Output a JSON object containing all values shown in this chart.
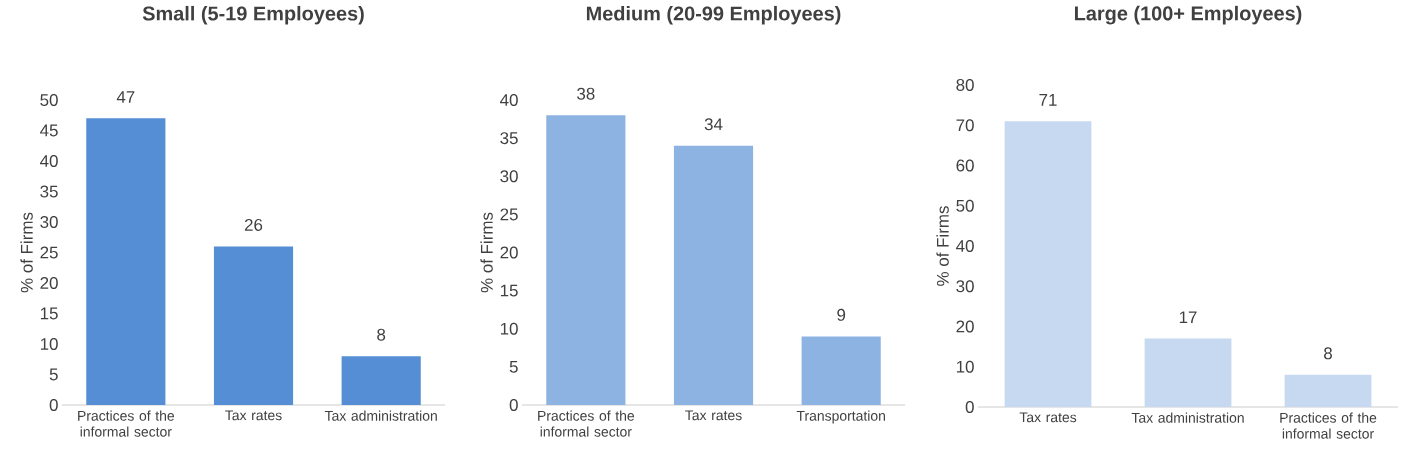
{
  "chart_data": [
    {
      "type": "bar",
      "title": "Small (5-19 Employees)",
      "ylabel": "% of Firms",
      "categories": [
        "Practices of the informal sector",
        "Tax rates",
        "Tax administration"
      ],
      "values": [
        47,
        26,
        8
      ],
      "color": "#558ed5",
      "ylim": [
        0,
        50
      ],
      "yticks": [
        0,
        5,
        10,
        15,
        20,
        25,
        30,
        35,
        40,
        45,
        50
      ],
      "data_labels": true
    },
    {
      "type": "bar",
      "title": "Medium (20-99 Employees)",
      "ylabel": "% of Firms",
      "categories": [
        "Practices of the informal sector",
        "Tax rates",
        "Transportation"
      ],
      "values": [
        38,
        34,
        9
      ],
      "color": "#8db3e2",
      "ylim": [
        0,
        40
      ],
      "yticks": [
        0,
        5,
        10,
        15,
        20,
        25,
        30,
        35,
        40
      ],
      "data_labels": true
    },
    {
      "type": "bar",
      "title": "Large (100+ Employees)",
      "ylabel": "% of Firms",
      "categories": [
        "Tax rates",
        "Tax administration",
        "Practices of the informal sector"
      ],
      "values": [
        71,
        17,
        8
      ],
      "color": "#c6d9f1",
      "ylim": [
        0,
        80
      ],
      "yticks": [
        0,
        10,
        20,
        30,
        40,
        50,
        60,
        70,
        80
      ],
      "data_labels": true
    }
  ]
}
